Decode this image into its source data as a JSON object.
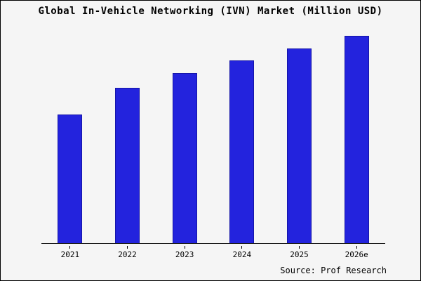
{
  "title": "Global In-Vehicle Networking (IVN) Market (Million USD)",
  "source": "Source: Prof Research",
  "colors": {
    "background": "#f5f5f5",
    "bar": "#2323dd",
    "bar_border": "#1515a8",
    "axis": "#000000"
  },
  "chart_data": {
    "type": "bar",
    "title": "Global In-Vehicle Networking (IVN) Market (Million USD)",
    "categories": [
      "2021",
      "2022",
      "2023",
      "2024",
      "2025",
      "2026e"
    ],
    "values": [
      62,
      75,
      82,
      88,
      94,
      100
    ],
    "xlabel": "",
    "ylabel": "",
    "ylim": [
      0,
      100
    ],
    "grid": false,
    "legend": "none",
    "value_note": "relative scale estimated from bar heights; no numeric axis shown",
    "source": "Source: Prof Research"
  }
}
